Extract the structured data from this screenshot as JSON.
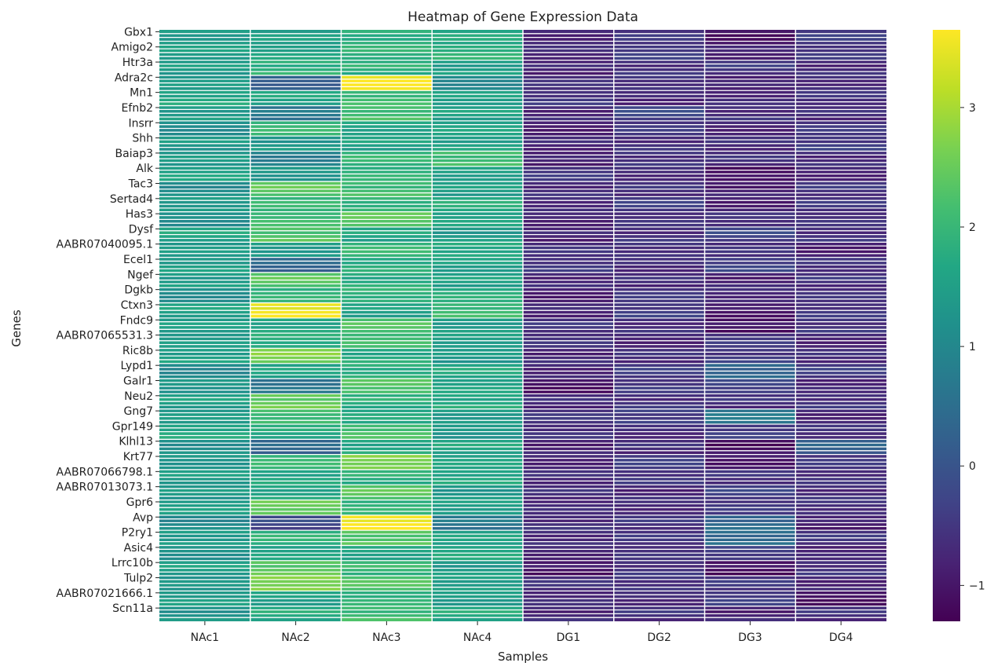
{
  "chart_data": {
    "type": "heatmap",
    "title": "Heatmap of Gene Expression Data",
    "xlabel": "Samples",
    "ylabel": "Genes",
    "colormap": "viridis",
    "color_range": [
      -1.3,
      3.65
    ],
    "colorbar_ticks": [
      3,
      2,
      1,
      0,
      -1
    ],
    "gridline_color": "#ffffff",
    "columns": [
      "NAc1",
      "NAc2",
      "NAc3",
      "NAc4",
      "DG1",
      "DG2",
      "DG3",
      "DG4"
    ],
    "rows": [
      "Gbx1",
      "Amigo2",
      "Htr3a",
      "Adra2c",
      "Mn1",
      "Efnb2",
      "Insrr",
      "Shh",
      "Baiap3",
      "Alk",
      "Tac3",
      "Sertad4",
      "Has3",
      "Dysf",
      "AABR07040095.1",
      "Ecel1",
      "Ngef",
      "Dgkb",
      "Ctxn3",
      "Fndc9",
      "AABR07065531.3",
      "Ric8b",
      "Lypd1",
      "Galr1",
      "Neu2",
      "Gng7",
      "Gpr149",
      "Klhl13",
      "Krt77",
      "AABR07066798.1",
      "AABR07013073.1",
      "Gpr6",
      "Avp",
      "P2ry1",
      "Asic4",
      "Lrrc10b",
      "Tulp2",
      "AABR07021666.1",
      "Scn11a"
    ],
    "values": [
      [
        1.5,
        1.4,
        1.9,
        1.6,
        -0.7,
        -0.6,
        -1.0,
        -0.5
      ],
      [
        1.6,
        1.5,
        2.0,
        1.8,
        -0.6,
        -0.5,
        -0.7,
        -0.6
      ],
      [
        1.4,
        1.9,
        1.8,
        1.5,
        -0.8,
        -0.6,
        -0.5,
        -0.7
      ],
      [
        1.3,
        0.3,
        3.5,
        1.1,
        -0.7,
        -0.5,
        -0.9,
        -0.6
      ],
      [
        1.6,
        1.7,
        2.0,
        1.6,
        -0.6,
        -0.7,
        -0.8,
        -0.5
      ],
      [
        1.5,
        0.6,
        2.2,
        1.5,
        -0.7,
        -0.3,
        -0.6,
        -0.7
      ],
      [
        1.2,
        1.9,
        1.7,
        1.5,
        -0.8,
        -0.6,
        -0.7,
        -0.6
      ],
      [
        1.4,
        1.3,
        1.6,
        1.5,
        -0.7,
        -0.7,
        -0.6,
        -0.5
      ],
      [
        1.3,
        0.9,
        1.9,
        2.2,
        -0.9,
        -0.5,
        -0.7,
        -0.6
      ],
      [
        1.5,
        1.4,
        1.8,
        1.6,
        -0.6,
        -0.6,
        -1.2,
        -0.7
      ],
      [
        1.1,
        2.4,
        2.1,
        1.5,
        -0.7,
        -0.6,
        -0.9,
        -0.5
      ],
      [
        1.5,
        1.9,
        2.0,
        1.7,
        -0.6,
        -0.5,
        -0.8,
        -0.6
      ],
      [
        1.2,
        2.0,
        2.5,
        1.5,
        -0.7,
        -0.7,
        -0.5,
        -0.7
      ],
      [
        1.6,
        2.3,
        1.6,
        1.4,
        -0.8,
        -0.6,
        -0.3,
        -0.6
      ],
      [
        1.3,
        1.5,
        1.9,
        1.8,
        -0.7,
        -0.5,
        -0.7,
        -0.8
      ],
      [
        1.4,
        0.4,
        1.7,
        1.6,
        -0.6,
        -0.6,
        -0.4,
        -0.5
      ],
      [
        1.5,
        2.3,
        1.8,
        1.5,
        -0.7,
        -0.7,
        -0.8,
        -0.6
      ],
      [
        1.2,
        1.8,
        2.0,
        1.7,
        -0.8,
        -0.6,
        -0.6,
        -0.7
      ],
      [
        1.6,
        3.5,
        1.6,
        2.0,
        -0.7,
        -0.5,
        -0.9,
        -0.6
      ],
      [
        1.4,
        1.7,
        2.2,
        1.5,
        -0.6,
        -0.6,
        -1.1,
        -0.5
      ],
      [
        1.3,
        1.9,
        2.0,
        1.6,
        -0.7,
        -0.7,
        -0.6,
        -0.7
      ],
      [
        1.5,
        2.7,
        1.7,
        1.4,
        -0.8,
        -0.6,
        -0.5,
        -0.6
      ],
      [
        1.1,
        1.5,
        1.9,
        1.6,
        -0.7,
        -0.5,
        0.4,
        -0.5
      ],
      [
        1.4,
        0.5,
        2.4,
        1.5,
        -1.0,
        -0.6,
        -0.2,
        -0.9
      ],
      [
        1.5,
        2.5,
        1.8,
        1.7,
        -0.7,
        -0.6,
        -0.6,
        -0.6
      ],
      [
        1.3,
        2.2,
        1.6,
        1.5,
        -0.6,
        -0.3,
        0.6,
        -0.7
      ],
      [
        1.6,
        1.8,
        2.1,
        1.4,
        -0.7,
        -0.6,
        -0.5,
        -0.5
      ],
      [
        1.2,
        0.3,
        1.7,
        1.6,
        -0.8,
        -0.7,
        -1.1,
        0.2
      ],
      [
        1.4,
        1.9,
        2.8,
        1.5,
        -0.7,
        -0.5,
        -0.9,
        -0.6
      ],
      [
        1.5,
        1.6,
        1.9,
        1.6,
        -0.6,
        -0.6,
        -0.5,
        -0.7
      ],
      [
        1.3,
        1.7,
        2.3,
        1.4,
        -0.7,
        -0.7,
        -0.4,
        -0.6
      ],
      [
        1.4,
        2.6,
        1.8,
        1.6,
        -0.8,
        -0.6,
        -0.6,
        -0.5
      ],
      [
        1.0,
        -0.2,
        3.6,
        0.7,
        -0.7,
        -0.5,
        0.3,
        -0.8
      ],
      [
        1.5,
        1.8,
        2.4,
        1.5,
        -0.6,
        -0.6,
        0.5,
        -0.6
      ],
      [
        1.3,
        1.5,
        1.7,
        1.6,
        -0.7,
        -0.7,
        -0.3,
        -0.9
      ],
      [
        1.5,
        2.4,
        2.0,
        1.4,
        -1.0,
        -0.6,
        -1.1,
        -0.6
      ],
      [
        1.2,
        2.8,
        2.2,
        1.6,
        -0.7,
        -0.5,
        -0.6,
        -0.7
      ],
      [
        1.4,
        1.6,
        1.8,
        1.5,
        -0.8,
        -0.6,
        -0.5,
        -1.0
      ],
      [
        1.3,
        1.7,
        2.1,
        1.7,
        -0.7,
        -0.6,
        -0.8,
        -0.6
      ]
    ]
  }
}
